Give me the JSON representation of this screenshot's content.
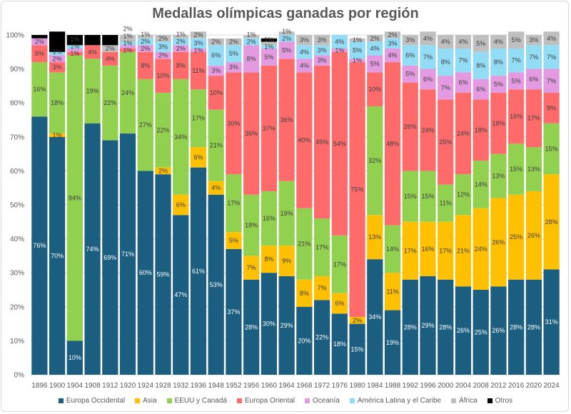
{
  "chart_data": {
    "type": "bar",
    "stacked": "percent",
    "title": "Medallas olímpicas ganadas por región",
    "xlabel": "",
    "ylabel": "",
    "ylim": [
      0,
      100
    ],
    "yticks": [
      "0%",
      "10%",
      "20%",
      "30%",
      "40%",
      "50%",
      "60%",
      "70%",
      "80%",
      "90%",
      "100%"
    ],
    "grid": true,
    "legend": "bottom",
    "categories": [
      "1896",
      "1900",
      "1904",
      "1908",
      "1912",
      "1920",
      "1924",
      "1928",
      "1932",
      "1936",
      "1948",
      "1952",
      "1956",
      "1960",
      "1964",
      "1968",
      "1972",
      "1976",
      "1980",
      "1984",
      "1988",
      "1992",
      "1996",
      "2000",
      "2004",
      "2008",
      "2012",
      "2016",
      "2020",
      "2024"
    ],
    "series": [
      {
        "name": "Europa Occidental",
        "color": "#1b5e80",
        "values": [
          76,
          70,
          10,
          74,
          69,
          71,
          60,
          59,
          47,
          61,
          53,
          37,
          28,
          30,
          29,
          20,
          22,
          18,
          15,
          34,
          19,
          28,
          29,
          28,
          26,
          25,
          26,
          28,
          28,
          31
        ]
      },
      {
        "name": "Asia",
        "color": "#ffc000",
        "values": [
          0,
          1,
          0,
          0,
          0,
          0,
          0,
          2,
          6,
          6,
          4,
          5,
          7,
          8,
          9,
          8,
          7,
          6,
          2,
          13,
          11,
          17,
          16,
          17,
          21,
          24,
          26,
          25,
          26,
          28
        ]
      },
      {
        "name": "EEUU y Canadá",
        "color": "#92d050",
        "values": [
          16,
          18,
          84,
          19,
          22,
          24,
          27,
          22,
          34,
          17,
          21,
          17,
          18,
          16,
          19,
          21,
          17,
          17,
          0,
          32,
          14,
          15,
          15,
          11,
          12,
          14,
          13,
          15,
          13,
          15
        ]
      },
      {
        "name": "Europa Oriental",
        "color": "#ff6b6b",
        "values": [
          5,
          3,
          1,
          4,
          4,
          1,
          8,
          10,
          8,
          11,
          10,
          30,
          36,
          37,
          36,
          40,
          45,
          54,
          75,
          10,
          48,
          26,
          24,
          25,
          24,
          18,
          18,
          16,
          17,
          9
        ]
      },
      {
        "name": "Oceanía",
        "color": "#e39ae0",
        "values": [
          2,
          2,
          1,
          0,
          0,
          1,
          2,
          2,
          2,
          1,
          3,
          3,
          8,
          5,
          5,
          4,
          3,
          1,
          1,
          5,
          4,
          5,
          6,
          7,
          6,
          6,
          5,
          5,
          6,
          7
        ]
      },
      {
        "name": "América Latina y el Caribe",
        "color": "#93dcf6",
        "values": [
          0,
          1,
          1,
          0,
          0,
          1,
          2,
          3,
          2,
          3,
          6,
          5,
          2,
          1,
          2,
          4,
          3,
          4,
          5,
          4,
          3,
          6,
          7,
          8,
          7,
          8,
          8,
          7,
          7,
          7
        ]
      },
      {
        "name": "África",
        "color": "#bfbfbf",
        "values": [
          0,
          0,
          0,
          0,
          2,
          2,
          1,
          2,
          1,
          2,
          2,
          2,
          1,
          1,
          1,
          3,
          3,
          0,
          1,
          2,
          2,
          3,
          4,
          4,
          4,
          5,
          4,
          5,
          3,
          4
        ]
      },
      {
        "name": "Otros",
        "color": "#000000",
        "values": [
          1,
          6,
          3,
          3,
          3,
          0,
          0,
          0,
          0,
          0,
          0,
          0,
          0,
          1,
          0,
          0,
          0,
          0,
          0,
          0,
          0,
          0,
          0,
          0,
          0,
          0,
          0,
          0,
          0,
          0
        ]
      }
    ]
  }
}
